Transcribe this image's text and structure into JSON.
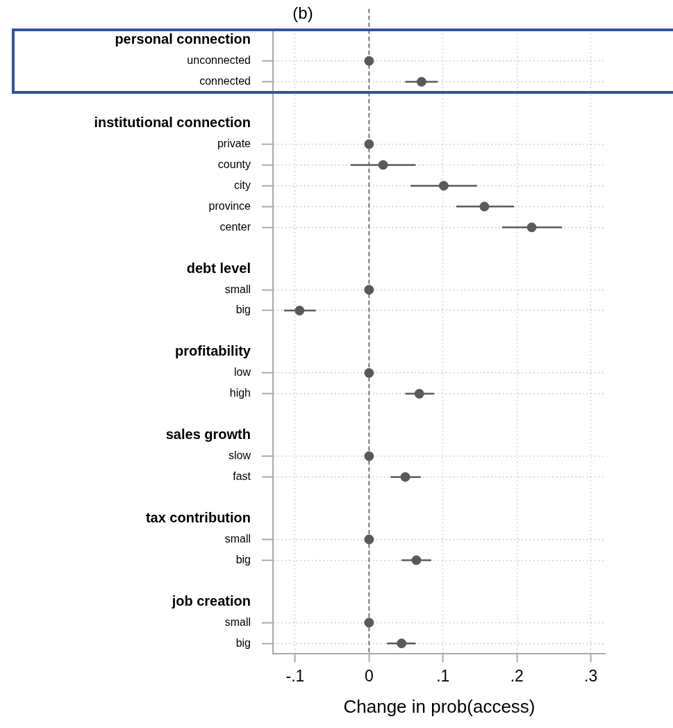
{
  "chart_data": {
    "type": "scatter",
    "orientation": "horizontal",
    "title": "(b)",
    "xlabel": "Change in prob(access)",
    "categories": [
      "personal connection",
      "unconnected",
      "connected",
      null,
      "institutional connection",
      "private",
      "county",
      "city",
      "province",
      "center",
      null,
      "debt level",
      "small",
      "big",
      null,
      "profitability",
      "low",
      "high",
      null,
      "sales growth",
      "slow",
      "fast",
      null,
      "tax contribution",
      "small",
      "big",
      null,
      "job creation",
      "small",
      "big"
    ],
    "values": [
      null,
      0,
      0.071,
      null,
      null,
      0,
      0.019,
      0.101,
      0.156,
      0.22,
      null,
      null,
      0,
      -0.094,
      null,
      null,
      0,
      0.068,
      null,
      null,
      0,
      0.049,
      null,
      null,
      0,
      0.064,
      null,
      null,
      0,
      0.044
    ],
    "errors": [
      null,
      null,
      [
        0.049,
        0.093
      ],
      null,
      null,
      null,
      [
        -0.025,
        0.063
      ],
      [
        0.056,
        0.146
      ],
      [
        0.118,
        0.196
      ],
      [
        0.18,
        0.261
      ],
      null,
      null,
      null,
      [
        -0.115,
        -0.072
      ],
      null,
      null,
      null,
      [
        0.049,
        0.088
      ],
      null,
      null,
      null,
      [
        0.029,
        0.07
      ],
      null,
      null,
      null,
      [
        0.044,
        0.084
      ],
      null,
      null,
      null,
      [
        0.024,
        0.063
      ]
    ],
    "color": "#5a5a5a",
    "marker": "circle",
    "xlim": [
      -0.13,
      0.32
    ],
    "xticks": [
      {
        "value": -0.1,
        "label": "-.1"
      },
      0,
      {
        "value": 0.1,
        "label": ".1"
      },
      {
        "value": 0.2,
        "label": ".2"
      },
      {
        "value": 0.3,
        "label": ".3"
      }
    ],
    "grid": true,
    "ref_lines": [
      {
        "axis": "x",
        "value": 0,
        "label": null,
        "color": "#666666",
        "line_style": "dashed"
      }
    ]
  }
}
